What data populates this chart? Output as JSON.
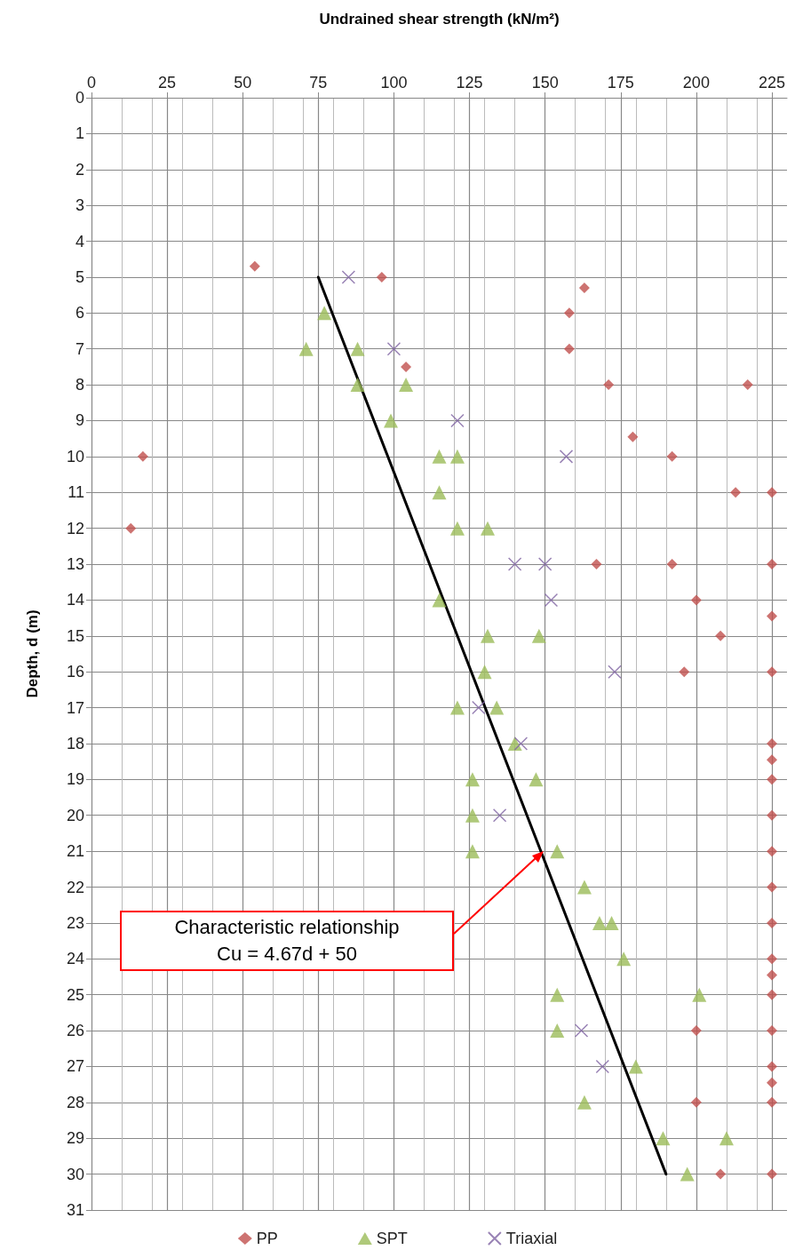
{
  "chart_data": {
    "type": "scatter",
    "xlabel": "Undrained shear strength (kN/m²)",
    "ylabel": "Depth, d (m)",
    "xlim": [
      0,
      230
    ],
    "xticks": [
      0,
      25,
      50,
      75,
      100,
      125,
      150,
      175,
      200,
      225
    ],
    "ylim": [
      31,
      0
    ],
    "yticks": [
      0,
      1,
      2,
      3,
      4,
      5,
      6,
      7,
      8,
      9,
      10,
      11,
      12,
      13,
      14,
      15,
      16,
      17,
      18,
      19,
      20,
      21,
      22,
      23,
      24,
      25,
      26,
      27,
      28,
      29,
      30,
      31
    ],
    "grid": true,
    "legend": "bottom",
    "series": [
      {
        "name": "PP",
        "marker": "diamond",
        "color": "#c0504d",
        "x": [
          54,
          96,
          163,
          158,
          158,
          104,
          171,
          217,
          179,
          192,
          17,
          213,
          225,
          13,
          167,
          192,
          225,
          200,
          225,
          208,
          196,
          225,
          225,
          225,
          225,
          225,
          225,
          225,
          225,
          225,
          225,
          225,
          200,
          225,
          225,
          225,
          200,
          225,
          208,
          225
        ],
        "values": [
          4.7,
          5,
          5.3,
          6,
          7,
          7.5,
          8,
          8,
          9.45,
          10,
          10,
          11,
          11,
          12,
          13,
          13,
          13,
          14,
          14.45,
          15,
          16,
          16,
          18,
          18.45,
          19,
          20,
          21,
          22,
          23,
          24,
          24.45,
          25,
          26,
          26,
          27,
          27.45,
          28,
          28,
          30,
          30
        ]
      },
      {
        "name": "SPT",
        "marker": "triangle",
        "color": "#9bbb59",
        "x": [
          77,
          71,
          88,
          88,
          104,
          99,
          115,
          121,
          115,
          121,
          131,
          115,
          131,
          148,
          130,
          121,
          134,
          140,
          126,
          147,
          126,
          126,
          154,
          163,
          168,
          172,
          176,
          154,
          201,
          154,
          180,
          163,
          189,
          210,
          197
        ],
        "values": [
          6,
          7,
          7,
          8,
          8,
          9,
          10,
          10,
          11,
          12,
          12,
          14,
          15,
          15,
          16,
          17,
          17,
          18,
          19,
          19,
          20,
          21,
          21,
          22,
          23,
          23,
          24,
          25,
          25,
          26,
          27,
          28,
          29,
          29,
          30
        ]
      },
      {
        "name": "Triaxial",
        "marker": "cross",
        "color": "#8064a2",
        "x": [
          85,
          100,
          121,
          157,
          140,
          150,
          152,
          173,
          128,
          142,
          135,
          162,
          169
        ],
        "values": [
          5,
          7,
          9,
          10,
          13,
          13,
          14,
          16,
          17,
          18,
          20,
          26,
          27
        ]
      },
      {
        "type": "line",
        "marker": "none",
        "line_style": "solid",
        "color": "#000000",
        "x": [
          75,
          190
        ],
        "values": [
          5,
          30
        ]
      }
    ],
    "annotations": [
      "Characteristic relationship\nCu = 4.67d + 50"
    ]
  }
}
